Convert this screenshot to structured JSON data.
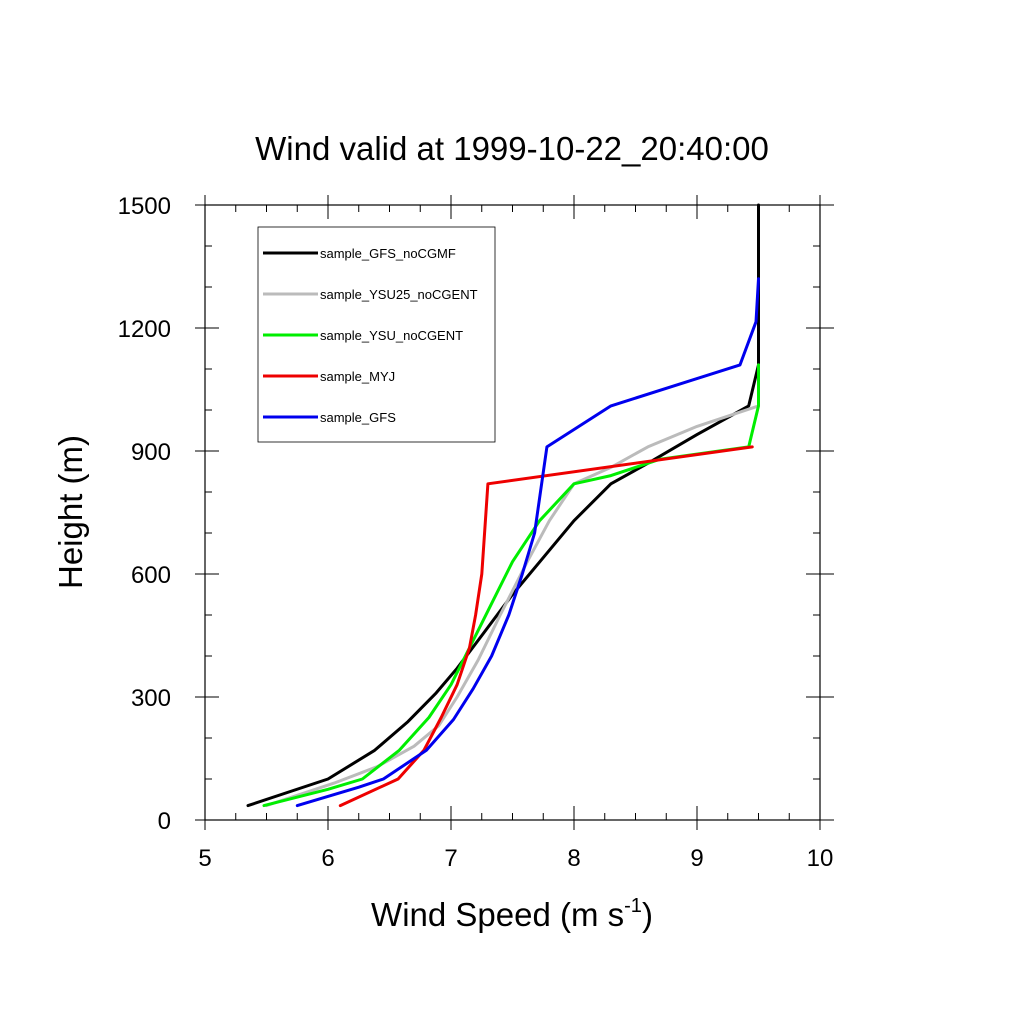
{
  "chart_data": {
    "type": "line",
    "title": "Wind valid at 1999-10-22_20:40:00",
    "xlabel": "Wind Speed (m s",
    "xlabel_superscript": "-1",
    "xlabel_suffix": ")",
    "ylabel": "Height (m)",
    "xlim": [
      5,
      10
    ],
    "ylim": [
      0,
      1500
    ],
    "xticks": [
      5,
      6,
      7,
      8,
      9,
      10
    ],
    "yticks": [
      0,
      300,
      600,
      900,
      1200,
      1500
    ],
    "grid": false,
    "legend_position": "top-left",
    "series": [
      {
        "name": "sample_GFS_noCGMF",
        "color": "#000000",
        "x": [
          5.35,
          6.0,
          6.38,
          6.65,
          6.88,
          7.05,
          7.25,
          7.5,
          7.75,
          8.0,
          8.3,
          8.6,
          9.0,
          9.42,
          9.5,
          9.5
        ],
        "y": [
          35,
          100,
          170,
          240,
          310,
          370,
          450,
          550,
          640,
          730,
          820,
          870,
          940,
          1010,
          1110,
          1500
        ]
      },
      {
        "name": "sample_YSU25_noCGENT",
        "color": "#bbbbbb",
        "x": [
          5.5,
          6.05,
          6.4,
          6.7,
          6.9,
          7.05,
          7.22,
          7.4,
          7.62,
          7.8,
          8.0,
          8.3,
          8.6,
          9.0,
          9.5,
          9.5
        ],
        "y": [
          35,
          90,
          130,
          180,
          230,
          300,
          390,
          500,
          630,
          730,
          820,
          860,
          910,
          960,
          1010,
          1110
        ]
      },
      {
        "name": "sample_YSU_noCGENT",
        "color": "#00ee00",
        "x": [
          5.48,
          6.0,
          6.28,
          6.58,
          6.82,
          7.0,
          7.15,
          7.3,
          7.5,
          7.72,
          8.0,
          8.3,
          8.7,
          9.42,
          9.5,
          9.5
        ],
        "y": [
          35,
          75,
          100,
          170,
          250,
          330,
          420,
          510,
          630,
          730,
          820,
          840,
          880,
          910,
          1010,
          1110
        ]
      },
      {
        "name": "sample_MYJ",
        "color": "#ee0000",
        "x": [
          6.1,
          6.57,
          6.78,
          6.92,
          7.05,
          7.15,
          7.2,
          7.25,
          7.3,
          9.45
        ],
        "y": [
          35,
          100,
          170,
          250,
          330,
          420,
          500,
          600,
          820,
          910
        ]
      },
      {
        "name": "sample_GFS",
        "color": "#0000ee",
        "x": [
          5.75,
          6.25,
          6.45,
          6.8,
          7.02,
          7.18,
          7.33,
          7.47,
          7.58,
          7.68,
          7.78,
          8.3,
          9.35,
          9.48,
          9.5
        ],
        "y": [
          35,
          80,
          100,
          170,
          245,
          320,
          400,
          500,
          600,
          700,
          910,
          1010,
          1110,
          1215,
          1320
        ]
      }
    ]
  }
}
